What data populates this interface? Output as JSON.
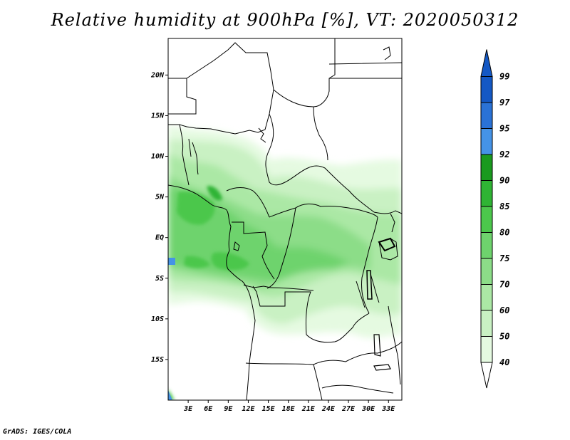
{
  "title": "Relative humidity at 900hPa [%], VT: 2020050312",
  "credit": "GrADS: IGES/COLA",
  "map": {
    "lat_labels": [
      {
        "text": "20N",
        "lat": 20
      },
      {
        "text": "15N",
        "lat": 15
      },
      {
        "text": "10N",
        "lat": 10
      },
      {
        "text": "5N",
        "lat": 5
      },
      {
        "text": "EQ",
        "lat": 0
      },
      {
        "text": "5S",
        "lat": -5
      },
      {
        "text": "10S",
        "lat": -10
      },
      {
        "text": "15S",
        "lat": -15
      }
    ],
    "lon_labels": [
      {
        "text": "3E",
        "lon": 3
      },
      {
        "text": "6E",
        "lon": 6
      },
      {
        "text": "9E",
        "lon": 9
      },
      {
        "text": "12E",
        "lon": 12
      },
      {
        "text": "15E",
        "lon": 15
      },
      {
        "text": "18E",
        "lon": 18
      },
      {
        "text": "21E",
        "lon": 21
      },
      {
        "text": "24E",
        "lon": 24
      },
      {
        "text": "27E",
        "lon": 27
      },
      {
        "text": "30E",
        "lon": 30
      },
      {
        "text": "33E",
        "lon": 33
      }
    ],
    "lon_range": [
      0,
      35
    ],
    "lat_range": [
      -20,
      24.5
    ]
  },
  "colorbar": {
    "levels": [
      "40",
      "50",
      "60",
      "70",
      "75",
      "80",
      "85",
      "90",
      "92",
      "95",
      "97",
      "99"
    ],
    "colors": [
      "#ffffff",
      "#e5fae1",
      "#c9f1c3",
      "#abe8a5",
      "#8cdd88",
      "#6ed36d",
      "#4cc74c",
      "#2fb434",
      "#1a9a1f",
      "#4593e6",
      "#2a72d6",
      "#1458c4"
    ]
  }
}
